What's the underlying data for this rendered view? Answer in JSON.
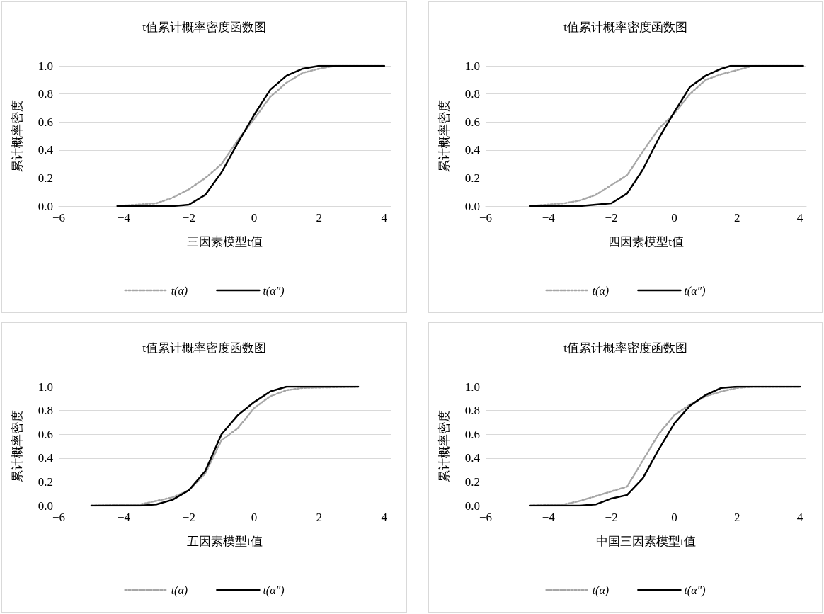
{
  "chart_data": [
    {
      "type": "line",
      "title": "t值累计概率密度函数图",
      "xlabel": "三因素模型t值",
      "ylabel": "累计概率密度",
      "xlim": [
        -6,
        4.2
      ],
      "ylim": [
        0,
        1
      ],
      "xticks": [
        {
          "value": -6,
          "label": "−6"
        },
        {
          "value": -4,
          "label": "−4"
        },
        {
          "value": -2,
          "label": "−2"
        },
        0,
        2,
        4
      ],
      "yticks": [
        {
          "value": 0,
          "label": "0.0"
        },
        {
          "value": 0.2,
          "label": "0.2"
        },
        {
          "value": 0.4,
          "label": "0.4"
        },
        {
          "value": 0.6,
          "label": "0.6"
        },
        {
          "value": 0.8,
          "label": "0.8"
        },
        {
          "value": 1,
          "label": "1.0"
        }
      ],
      "grid": "y",
      "legend": "bottom",
      "marker": "none",
      "series": [
        {
          "name": "t(α)",
          "color": "#a6a6a6",
          "line_style": "dotted",
          "x": [
            -4.2,
            -3,
            -2.5,
            -2,
            -1.5,
            -1,
            -0.5,
            0,
            0.5,
            1,
            1.5,
            2,
            2.5,
            4
          ],
          "values": [
            0,
            0.02,
            0.06,
            0.12,
            0.2,
            0.3,
            0.47,
            0.62,
            0.78,
            0.88,
            0.95,
            0.98,
            1,
            1
          ]
        },
        {
          "name": "t(α″)",
          "color": "#000000",
          "line_style": "solid",
          "x": [
            -4.2,
            -2.5,
            -2,
            -1.5,
            -1,
            -0.5,
            0,
            0.5,
            1,
            1.5,
            2,
            4
          ],
          "values": [
            0,
            0,
            0.01,
            0.08,
            0.24,
            0.45,
            0.65,
            0.83,
            0.93,
            0.98,
            1,
            1
          ]
        }
      ]
    },
    {
      "type": "line",
      "title": "t值累计概率密度函数图",
      "xlabel": "四因素模型t值",
      "ylabel": "累计概率密度",
      "xlim": [
        -6,
        4.2
      ],
      "ylim": [
        0,
        1
      ],
      "xticks": [
        {
          "value": -6,
          "label": "−6"
        },
        {
          "value": -4,
          "label": "−4"
        },
        {
          "value": -2,
          "label": "−2"
        },
        0,
        2,
        4
      ],
      "yticks": [
        {
          "value": 0,
          "label": "0.0"
        },
        {
          "value": 0.2,
          "label": "0.2"
        },
        {
          "value": 0.4,
          "label": "0.4"
        },
        {
          "value": 0.6,
          "label": "0.6"
        },
        {
          "value": 0.8,
          "label": "0.8"
        },
        {
          "value": 1,
          "label": "1.0"
        }
      ],
      "grid": "y",
      "legend": "bottom",
      "marker": "none",
      "series": [
        {
          "name": "t(α)",
          "color": "#a6a6a6",
          "line_style": "dotted",
          "x": [
            -4.6,
            -3.5,
            -3,
            -2.5,
            -2,
            -1.5,
            -1,
            -0.5,
            0,
            0.5,
            1,
            1.5,
            2,
            2.5,
            4.1
          ],
          "values": [
            0,
            0.02,
            0.04,
            0.08,
            0.15,
            0.22,
            0.39,
            0.55,
            0.66,
            0.8,
            0.9,
            0.94,
            0.97,
            1,
            1
          ]
        },
        {
          "name": "t(α″)",
          "color": "#000000",
          "line_style": "solid",
          "x": [
            -4.6,
            -3,
            -2,
            -1.5,
            -1,
            -0.5,
            0,
            0.5,
            1,
            1.5,
            1.8,
            4.1
          ],
          "values": [
            0,
            0,
            0.02,
            0.09,
            0.26,
            0.48,
            0.67,
            0.85,
            0.93,
            0.98,
            1,
            1
          ]
        }
      ]
    },
    {
      "type": "line",
      "title": "t值累计概率密度函数图",
      "xlabel": "五因素模型t值",
      "ylabel": "累计概率密度",
      "xlim": [
        -6,
        4.2
      ],
      "ylim": [
        0,
        1
      ],
      "xticks": [
        {
          "value": -6,
          "label": "−6"
        },
        {
          "value": -4,
          "label": "−4"
        },
        {
          "value": -2,
          "label": "−2"
        },
        0,
        2,
        4
      ],
      "yticks": [
        {
          "value": 0,
          "label": "0.0"
        },
        {
          "value": 0.2,
          "label": "0.2"
        },
        {
          "value": 0.4,
          "label": "0.4"
        },
        {
          "value": 0.6,
          "label": "0.6"
        },
        {
          "value": 0.8,
          "label": "0.8"
        },
        {
          "value": 1,
          "label": "1.0"
        }
      ],
      "grid": "y",
      "legend": "bottom",
      "marker": "none",
      "series": [
        {
          "name": "t(α)",
          "color": "#a6a6a6",
          "line_style": "dotted",
          "x": [
            -5,
            -3.5,
            -3,
            -2.5,
            -2,
            -1.5,
            -1,
            -0.5,
            0,
            0.5,
            1,
            1.5,
            3.2
          ],
          "values": [
            0,
            0.01,
            0.04,
            0.07,
            0.13,
            0.27,
            0.55,
            0.65,
            0.82,
            0.92,
            0.97,
            0.99,
            1
          ]
        },
        {
          "name": "t(α″)",
          "color": "#000000",
          "line_style": "solid",
          "x": [
            -5,
            -3.5,
            -3,
            -2.5,
            -2,
            -1.5,
            -1,
            -0.5,
            0,
            0.5,
            1,
            3.2
          ],
          "values": [
            0,
            0,
            0.01,
            0.05,
            0.13,
            0.29,
            0.6,
            0.76,
            0.87,
            0.96,
            1,
            1
          ]
        }
      ]
    },
    {
      "type": "line",
      "title": "t值累计概率密度函数图",
      "xlabel": "中国三因素模型t值",
      "ylabel": "累计概率密度",
      "xlim": [
        -6,
        4.2
      ],
      "ylim": [
        0,
        1
      ],
      "xticks": [
        {
          "value": -6,
          "label": "−6"
        },
        {
          "value": -4,
          "label": "−4"
        },
        {
          "value": -2,
          "label": "−2"
        },
        0,
        2,
        4
      ],
      "yticks": [
        {
          "value": 0,
          "label": "0.0"
        },
        {
          "value": 0.2,
          "label": "0.2"
        },
        {
          "value": 0.4,
          "label": "0.4"
        },
        {
          "value": 0.6,
          "label": "0.6"
        },
        {
          "value": 0.8,
          "label": "0.8"
        },
        {
          "value": 1,
          "label": "1.0"
        }
      ],
      "grid": "y",
      "legend": "bottom",
      "marker": "none",
      "series": [
        {
          "name": "t(α)",
          "color": "#a6a6a6",
          "line_style": "dotted",
          "x": [
            -4.6,
            -3.5,
            -3,
            -2.5,
            -2,
            -1.5,
            -1,
            -0.5,
            0,
            0.5,
            1,
            1.5,
            2,
            2.5,
            4
          ],
          "values": [
            0,
            0.01,
            0.04,
            0.08,
            0.12,
            0.16,
            0.38,
            0.6,
            0.76,
            0.85,
            0.92,
            0.96,
            0.99,
            1,
            1
          ]
        },
        {
          "name": "t(α″)",
          "color": "#000000",
          "line_style": "solid",
          "x": [
            -4.6,
            -3,
            -2.5,
            -2,
            -1.5,
            -1,
            -0.5,
            0,
            0.5,
            1,
            1.5,
            2,
            4
          ],
          "values": [
            0,
            0,
            0.01,
            0.06,
            0.09,
            0.23,
            0.47,
            0.69,
            0.84,
            0.93,
            0.99,
            1,
            1
          ]
        }
      ]
    }
  ]
}
